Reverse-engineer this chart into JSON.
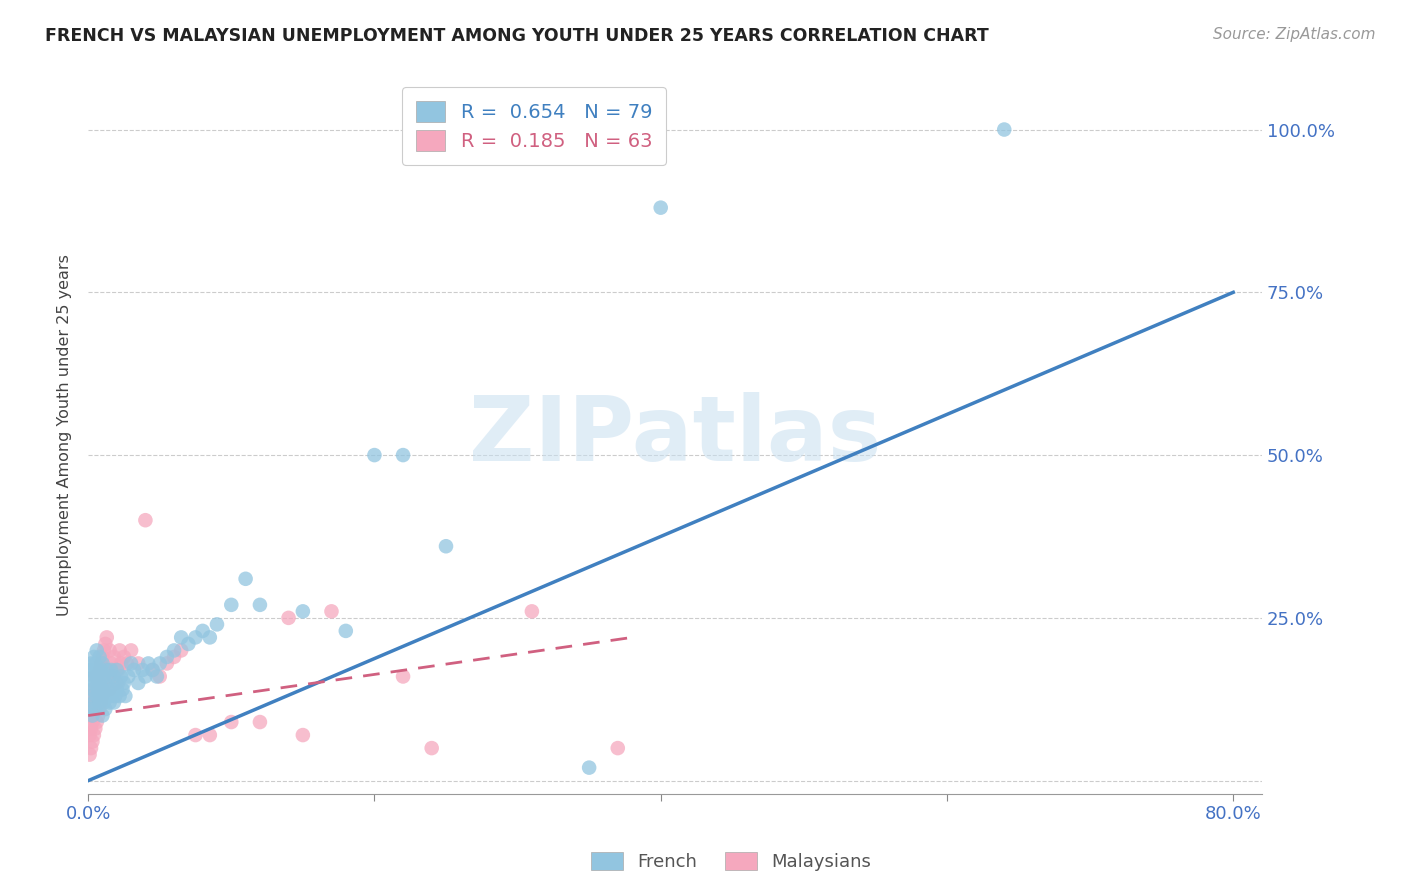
{
  "title": "FRENCH VS MALAYSIAN UNEMPLOYMENT AMONG YOUTH UNDER 25 YEARS CORRELATION CHART",
  "source": "Source: ZipAtlas.com",
  "ylabel": "Unemployment Among Youth under 25 years",
  "xlim": [
    0.0,
    0.82
  ],
  "ylim": [
    -0.02,
    1.08
  ],
  "xtick_positions": [
    0.0,
    0.2,
    0.4,
    0.6,
    0.8
  ],
  "xticklabels": [
    "0.0%",
    "",
    "",
    "",
    "80.0%"
  ],
  "ytick_positions": [
    0.0,
    0.25,
    0.5,
    0.75,
    1.0
  ],
  "ytick_labels": [
    "",
    "25.0%",
    "50.0%",
    "75.0%",
    "100.0%"
  ],
  "french_R": "0.654",
  "french_N": "79",
  "malaysian_R": "0.185",
  "malaysian_N": "63",
  "french_scatter_color": "#92C5E0",
  "french_line_color": "#4080C0",
  "malaysian_scatter_color": "#F5A8BE",
  "malaysian_line_color": "#D06080",
  "watermark_color": "#C8DFF0",
  "french_line_x0": 0.0,
  "french_line_y0": 0.0,
  "french_line_x1": 0.8,
  "french_line_y1": 0.75,
  "malaysian_line_x0": 0.0,
  "malaysian_line_y0": 0.1,
  "malaysian_line_x1": 0.38,
  "malaysian_line_y1": 0.22,
  "french_x": [
    0.001,
    0.001,
    0.002,
    0.002,
    0.002,
    0.003,
    0.003,
    0.003,
    0.004,
    0.004,
    0.004,
    0.005,
    0.005,
    0.005,
    0.006,
    0.006,
    0.006,
    0.007,
    0.007,
    0.008,
    0.008,
    0.008,
    0.009,
    0.009,
    0.01,
    0.01,
    0.01,
    0.011,
    0.011,
    0.012,
    0.012,
    0.013,
    0.013,
    0.014,
    0.015,
    0.015,
    0.016,
    0.016,
    0.017,
    0.018,
    0.018,
    0.019,
    0.02,
    0.02,
    0.021,
    0.022,
    0.023,
    0.024,
    0.025,
    0.026,
    0.028,
    0.03,
    0.032,
    0.035,
    0.038,
    0.04,
    0.042,
    0.045,
    0.048,
    0.05,
    0.055,
    0.06,
    0.065,
    0.07,
    0.075,
    0.08,
    0.085,
    0.09,
    0.1,
    0.11,
    0.12,
    0.15,
    0.18,
    0.2,
    0.22,
    0.25,
    0.35,
    0.4,
    0.64
  ],
  "french_y": [
    0.13,
    0.17,
    0.11,
    0.15,
    0.18,
    0.1,
    0.14,
    0.17,
    0.12,
    0.16,
    0.19,
    0.11,
    0.15,
    0.18,
    0.13,
    0.16,
    0.2,
    0.14,
    0.17,
    0.12,
    0.15,
    0.19,
    0.13,
    0.17,
    0.1,
    0.14,
    0.18,
    0.12,
    0.16,
    0.11,
    0.15,
    0.13,
    0.17,
    0.14,
    0.12,
    0.16,
    0.13,
    0.17,
    0.14,
    0.12,
    0.16,
    0.13,
    0.14,
    0.17,
    0.15,
    0.13,
    0.16,
    0.14,
    0.15,
    0.13,
    0.16,
    0.18,
    0.17,
    0.15,
    0.17,
    0.16,
    0.18,
    0.17,
    0.16,
    0.18,
    0.19,
    0.2,
    0.22,
    0.21,
    0.22,
    0.23,
    0.22,
    0.24,
    0.27,
    0.31,
    0.27,
    0.26,
    0.23,
    0.5,
    0.5,
    0.36,
    0.02,
    0.88,
    1.0
  ],
  "malaysian_x": [
    0.001,
    0.001,
    0.001,
    0.002,
    0.002,
    0.002,
    0.003,
    0.003,
    0.003,
    0.004,
    0.004,
    0.004,
    0.005,
    0.005,
    0.005,
    0.006,
    0.006,
    0.007,
    0.007,
    0.008,
    0.008,
    0.009,
    0.009,
    0.01,
    0.01,
    0.011,
    0.011,
    0.012,
    0.012,
    0.013,
    0.013,
    0.014,
    0.015,
    0.015,
    0.016,
    0.017,
    0.018,
    0.019,
    0.02,
    0.021,
    0.022,
    0.023,
    0.025,
    0.027,
    0.03,
    0.035,
    0.04,
    0.045,
    0.05,
    0.055,
    0.06,
    0.065,
    0.075,
    0.085,
    0.1,
    0.12,
    0.14,
    0.15,
    0.17,
    0.22,
    0.24,
    0.31,
    0.37
  ],
  "malaysian_y": [
    0.04,
    0.07,
    0.1,
    0.05,
    0.08,
    0.12,
    0.06,
    0.09,
    0.13,
    0.07,
    0.11,
    0.14,
    0.08,
    0.12,
    0.16,
    0.09,
    0.13,
    0.1,
    0.15,
    0.11,
    0.17,
    0.12,
    0.18,
    0.13,
    0.19,
    0.14,
    0.2,
    0.15,
    0.21,
    0.16,
    0.22,
    0.17,
    0.14,
    0.2,
    0.18,
    0.16,
    0.19,
    0.17,
    0.15,
    0.17,
    0.2,
    0.18,
    0.19,
    0.18,
    0.2,
    0.18,
    0.4,
    0.17,
    0.16,
    0.18,
    0.19,
    0.2,
    0.07,
    0.07,
    0.09,
    0.09,
    0.25,
    0.07,
    0.26,
    0.16,
    0.05,
    0.26,
    0.05
  ]
}
